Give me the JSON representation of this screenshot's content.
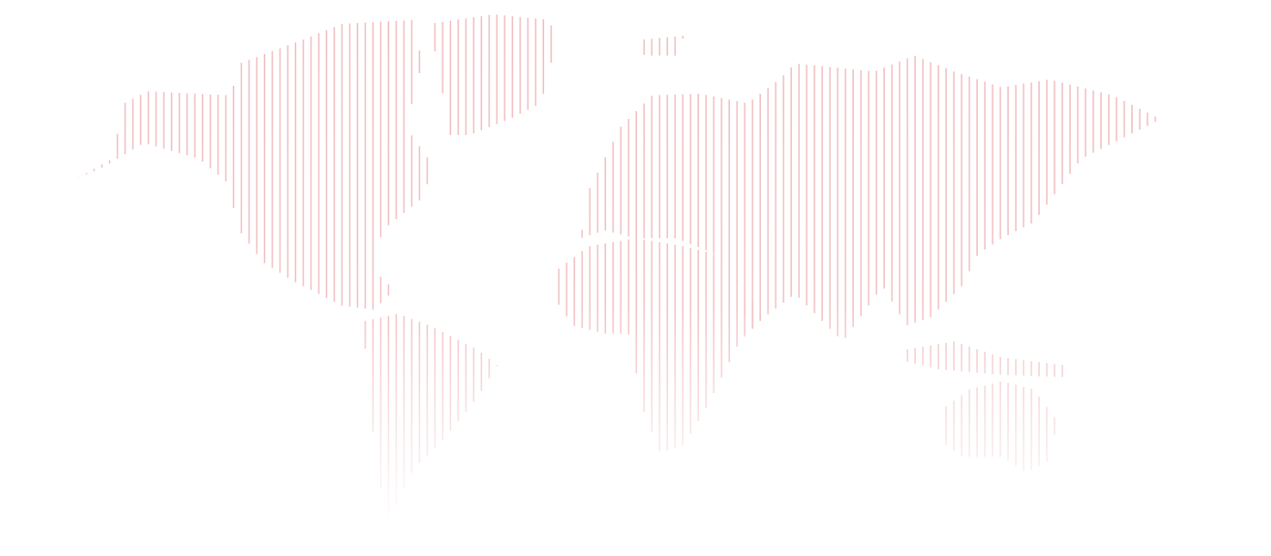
{
  "map": {
    "style": "dotted-line world map",
    "line_color": "#f2c4c6",
    "background": "#ffffff"
  }
}
